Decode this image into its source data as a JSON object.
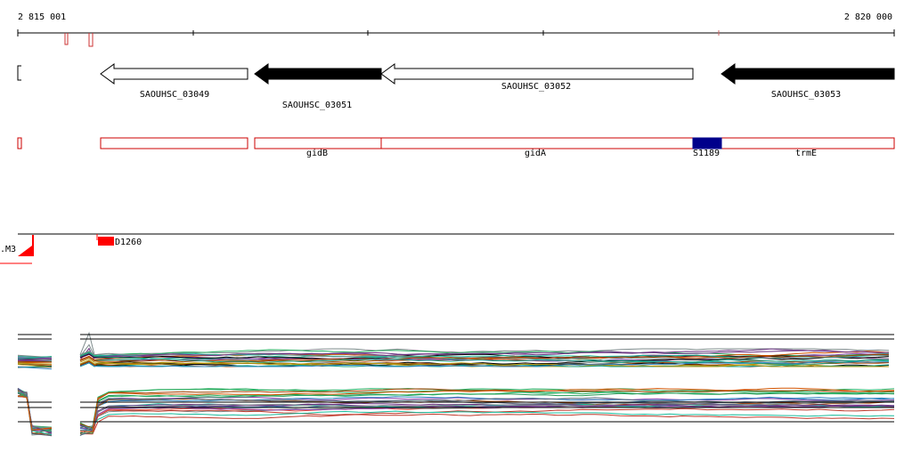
{
  "ruler": {
    "start": "2 815 001",
    "end": "2 820 000"
  },
  "genes": [
    {
      "label": "SAOUHSC_03049"
    },
    {
      "label": "SAOUHSC_03051"
    },
    {
      "label": "SAOUHSC_03052"
    },
    {
      "label": "SAOUHSC_03053"
    }
  ],
  "features": [
    {
      "label": "gidB"
    },
    {
      "label": "gidA"
    },
    {
      "label": "S1189"
    },
    {
      "label": "trmE"
    }
  ],
  "tracks": {
    "element_label": "D1260",
    "partial_label": ".M3"
  }
}
